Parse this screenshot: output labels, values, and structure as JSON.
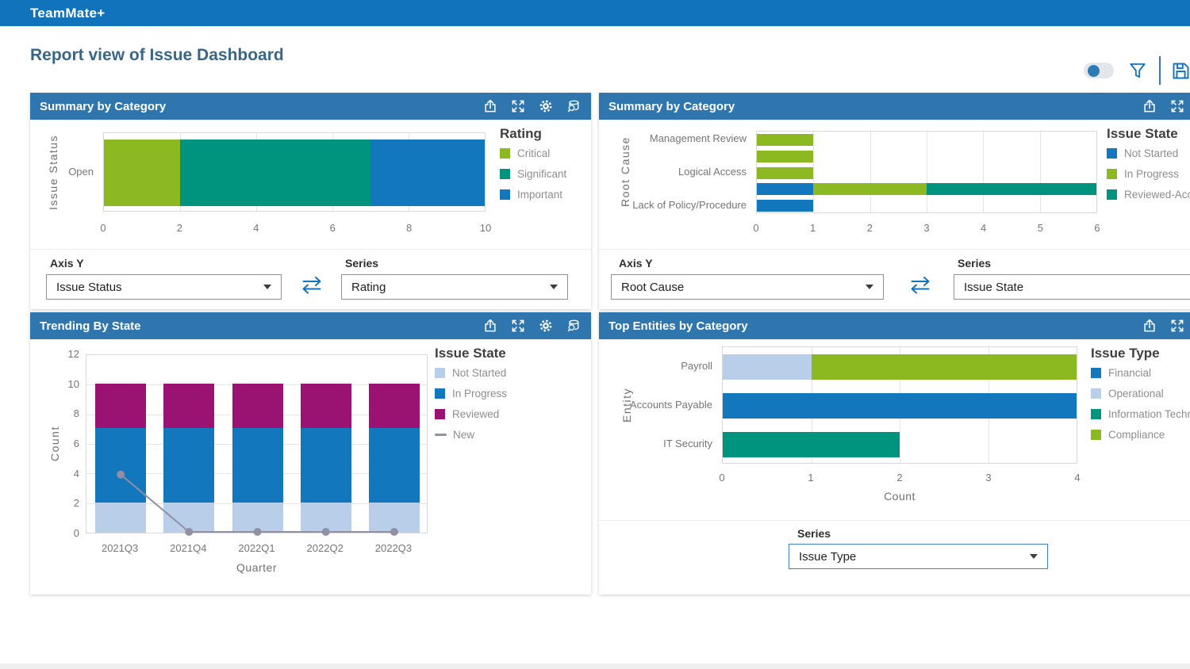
{
  "app": {
    "title": "TeamMate+"
  },
  "page": {
    "title": "Report view of Issue Dashboard"
  },
  "toolbar": {
    "toggle_knob_position": "left",
    "toggle_knob_color": "#2C7BB5"
  },
  "labels": {
    "axis_y": "Axis Y",
    "series": "Series"
  },
  "colors": {
    "appbar": "#1173BB",
    "panel_header": "#2E76AD",
    "green": "#8CB821",
    "teal": "#00947E",
    "blue": "#1377BD",
    "light_blue": "#B9CFE9",
    "magenta": "#9A1272",
    "line_gray": "#8F8FA6"
  },
  "panels": [
    {
      "title": "Summary by Category",
      "axis_y": "Issue Status",
      "series": "Rating"
    },
    {
      "title": "Summary by Category",
      "axis_y": "Root Cause",
      "series": "Issue State"
    },
    {
      "title": "Trending By State"
    },
    {
      "title": "Top Entities by Category",
      "series": "Issue Type"
    }
  ],
  "chart_data": [
    {
      "type": "bar",
      "orientation": "horizontal",
      "stacked": true,
      "title": "Summary by Category",
      "legend_title": "Rating",
      "legend_position": "right",
      "ylabel": "Issue Status",
      "xlabel": "",
      "categories": [
        "Open"
      ],
      "series": [
        {
          "name": "Critical",
          "color": "#8CB821",
          "values": [
            2
          ]
        },
        {
          "name": "Significant",
          "color": "#00947E",
          "values": [
            5
          ]
        },
        {
          "name": "Important",
          "color": "#1377BD",
          "values": [
            3
          ]
        }
      ],
      "xlim": [
        0,
        10
      ],
      "xticks": [
        0,
        2,
        4,
        6,
        8,
        10
      ],
      "grid": true
    },
    {
      "type": "bar",
      "orientation": "horizontal",
      "stacked": true,
      "title": "Summary by Category",
      "legend_title": "Issue State",
      "legend_position": "right",
      "ylabel": "Root Cause",
      "xlabel": "",
      "categories": [
        "Management Review",
        "",
        "Logical Access",
        "",
        "Lack of Policy/Procedure"
      ],
      "series": [
        {
          "name": "Not Started",
          "color": "#1377BD",
          "values": [
            0,
            0,
            0,
            1,
            1
          ]
        },
        {
          "name": "In Progress",
          "color": "#8CB821",
          "values": [
            1,
            1,
            1,
            2,
            0
          ]
        },
        {
          "name": "Reviewed-Acce",
          "color": "#00947E",
          "values": [
            0,
            0,
            0,
            3,
            0
          ]
        }
      ],
      "xlim": [
        0,
        6
      ],
      "xticks": [
        0,
        1,
        2,
        3,
        4,
        5,
        6
      ],
      "grid": true
    },
    {
      "type": "bar",
      "orientation": "vertical",
      "stacked": true,
      "title": "Trending By State",
      "legend_title": "Issue State",
      "legend_position": "right",
      "xlabel": "Quarter",
      "ylabel": "Count",
      "categories": [
        "2021Q3",
        "2021Q4",
        "2022Q1",
        "2022Q2",
        "2022Q3"
      ],
      "series": [
        {
          "name": "Not Started",
          "color": "#B9CFE9",
          "values": [
            2,
            2,
            2,
            2,
            2
          ]
        },
        {
          "name": "In Progress",
          "color": "#1377BD",
          "values": [
            5,
            5,
            5,
            5,
            5
          ]
        },
        {
          "name": "Reviewed",
          "color": "#9A1272",
          "values": [
            3,
            3,
            3,
            3,
            3
          ]
        }
      ],
      "line_series": {
        "name": "New",
        "color": "#8F8FA6",
        "values": [
          4,
          0,
          0,
          0,
          0
        ]
      },
      "ylim": [
        0,
        12
      ],
      "yticks": [
        0,
        2,
        4,
        6,
        8,
        10,
        12
      ],
      "grid": true
    },
    {
      "type": "bar",
      "orientation": "horizontal",
      "stacked": true,
      "title": "Top Entities by Category",
      "legend_title": "Issue Type",
      "legend_position": "right",
      "ylabel": "Entity",
      "xlabel": "Count",
      "categories": [
        "Payroll",
        "Accounts Payable",
        "IT Security"
      ],
      "series": [
        {
          "name": "Financial",
          "color": "#1377BD",
          "values": [
            0,
            4,
            0
          ]
        },
        {
          "name": "Operational",
          "color": "#B9CFE9",
          "values": [
            1,
            0,
            0
          ]
        },
        {
          "name": "Information Techno",
          "color": "#00947E",
          "values": [
            0,
            0,
            2
          ]
        },
        {
          "name": "Compliance",
          "color": "#8CB821",
          "values": [
            3,
            0,
            0
          ]
        }
      ],
      "xlim": [
        0,
        4
      ],
      "xticks": [
        0,
        1,
        2,
        3,
        4
      ],
      "grid": true
    }
  ]
}
